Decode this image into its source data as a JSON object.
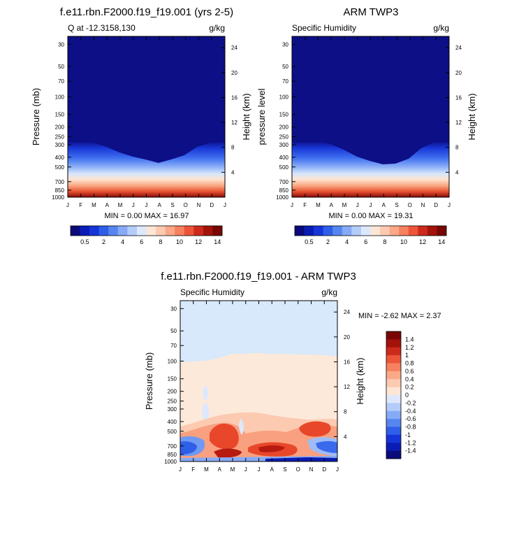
{
  "figure": {
    "top_left": {
      "title": "f.e11.rbn.F2000.f19_f19.001 (yrs 2-5)",
      "subtitle_left": "Q at -12.3158,130",
      "subtitle_right": "g/kg",
      "ylabel_left": "Pressure (mb)",
      "ylabel_right": "Height (km)",
      "minmax": "MIN =   0.00 MAX =  16.97",
      "fill_color": "#0c0f86"
    },
    "top_right": {
      "title": "ARM TWP3",
      "subtitle_left": "Specific Humidity",
      "subtitle_right": "g/kg",
      "ylabel_left": "pressure level",
      "ylabel_right": "Height (km)",
      "minmax": "MIN =   0.00 MAX =  19.31",
      "fill_color": "#0c0f86"
    },
    "bottom": {
      "title": "f.e11.rbn.F2000.f19_f19.001 - ARM TWP3",
      "subtitle_left": "Specific Humidity",
      "subtitle_right": "g/kg",
      "ylabel_left": "Pressure (mb)",
      "ylabel_right": "Height (km)",
      "minmax": "MIN =  -2.62 MAX =   2.37",
      "upper_color": "#d7e9fb",
      "middle_color": "#fde9da"
    }
  },
  "chart_data": [
    {
      "type": "heatmap",
      "title": "f.e11.rbn.F2000.f19_f19.001 (yrs 2-5)",
      "variable": "Q at -12.3158,130",
      "units": "g/kg",
      "x_ticks": [
        "J",
        "F",
        "M",
        "A",
        "M",
        "J",
        "J",
        "A",
        "S",
        "O",
        "N",
        "D",
        "J"
      ],
      "pressure_ticks": [
        30,
        50,
        70,
        100,
        150,
        200,
        250,
        300,
        400,
        500,
        700,
        850,
        1000
      ],
      "height_ticks": [
        4,
        8,
        12,
        16,
        20,
        24
      ],
      "ylim_mb": [
        1000,
        25
      ],
      "moist_top_mb": [
        290,
        290,
        300,
        350,
        400,
        450,
        480,
        520,
        480,
        410,
        310,
        280,
        290
      ],
      "min": 0.0,
      "max": 16.97
    },
    {
      "type": "heatmap",
      "title": "ARM TWP3",
      "variable": "Specific Humidity",
      "units": "g/kg",
      "x_ticks": [
        "J",
        "F",
        "M",
        "A",
        "M",
        "J",
        "J",
        "A",
        "S",
        "O",
        "N",
        "D",
        "J"
      ],
      "pressure_ticks": [
        30,
        50,
        70,
        100,
        150,
        200,
        250,
        300,
        400,
        500,
        700,
        850,
        1000
      ],
      "height_ticks": [
        4,
        8,
        12,
        16,
        20,
        24
      ],
      "ylim_mb": [
        1000,
        25
      ],
      "moist_top_mb": [
        290,
        290,
        290,
        320,
        380,
        450,
        500,
        530,
        520,
        440,
        330,
        290,
        290
      ],
      "min": 0.0,
      "max": 19.31
    },
    {
      "type": "heatmap",
      "title": "f.e11.rbn.F2000.f19_f19.001 - ARM TWP3",
      "variable": "Specific Humidity difference",
      "units": "g/kg",
      "x_ticks": [
        "J",
        "F",
        "M",
        "A",
        "M",
        "J",
        "J",
        "A",
        "S",
        "O",
        "N",
        "D",
        "J"
      ],
      "pressure_ticks": [
        30,
        50,
        70,
        100,
        150,
        200,
        250,
        300,
        400,
        500,
        700,
        850,
        1000
      ],
      "height_ticks": [
        4,
        8,
        12,
        16,
        20,
        24
      ],
      "ylim_mb": [
        1000,
        25
      ],
      "zero_line_mb": [
        115,
        115,
        108,
        95,
        80,
        80,
        80,
        82,
        85,
        88,
        88,
        90,
        92
      ],
      "min": -2.62,
      "max": 2.37
    }
  ],
  "colorbars": {
    "top": {
      "labels": [
        "0.5",
        "2",
        "4",
        "6",
        "8",
        "10",
        "12",
        "14"
      ],
      "colors": [
        "#0a0a7a",
        "#0b1cb4",
        "#1535d8",
        "#2f5ee8",
        "#5685f0",
        "#86aaf6",
        "#b4ccfa",
        "#dde8fc",
        "#fde6d6",
        "#fccab0",
        "#fba888",
        "#f7805f",
        "#ec5538",
        "#cc2b1b",
        "#a4120c",
        "#780605"
      ]
    },
    "bottom": {
      "labels": [
        "1.4",
        "1.2",
        "1",
        "0.8",
        "0.6",
        "0.4",
        "0.2",
        "0",
        "-0.2",
        "-0.4",
        "-0.6",
        "-0.8",
        "-1",
        "-1.2",
        "-1.4"
      ],
      "colors": [
        "#780605",
        "#a4120c",
        "#cc2b1b",
        "#ec5538",
        "#f7805f",
        "#fba888",
        "#fccab0",
        "#fde6d6",
        "#dde8fc",
        "#b4ccfa",
        "#86aaf6",
        "#5685f0",
        "#2f5ee8",
        "#1535d8",
        "#0b1cb4",
        "#0a0a7a"
      ]
    }
  }
}
